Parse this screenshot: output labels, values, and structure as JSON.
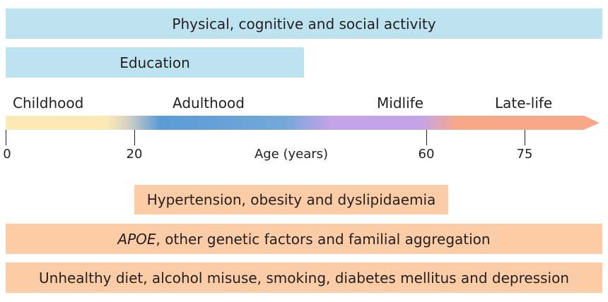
{
  "bands_top": [
    {
      "label": "Physical, cognitive and social activity"
    },
    {
      "label": "Education"
    }
  ],
  "stages": [
    {
      "label": "Childhood"
    },
    {
      "label": "Adulthood"
    },
    {
      "label": "Midlife"
    },
    {
      "label": "Late-life"
    }
  ],
  "ticks": [
    "0",
    "20",
    "60",
    "75"
  ],
  "axis_label": "Age (years)",
  "bands_bottom": [
    {
      "label": "Hypertension, obesity and dyslipidaemia"
    },
    {
      "label_italic": "APOE",
      "label_rest": ", other genetic factors and familial aggregation"
    },
    {
      "label": "Unhealthy diet, alcohol misuse, smoking, diabetes mellitus and depression"
    }
  ],
  "colors": {
    "protective_band": "#bde3f0",
    "risk_band": "#fbcca5",
    "childhood": "#fde9b5",
    "adulthood": "#5b9bd5",
    "midlife": "#c5a3e8",
    "late_life": "#f7a888"
  }
}
